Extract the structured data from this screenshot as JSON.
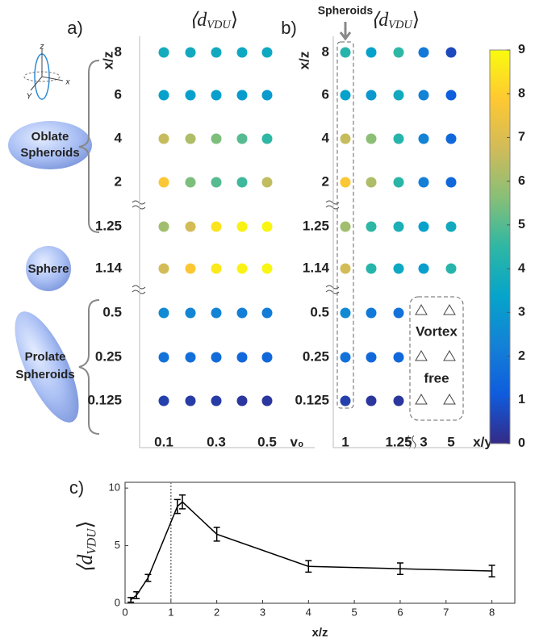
{
  "chart_data": [
    {
      "type": "heatmap",
      "panel": "a)",
      "title": "⟨d",
      "title_sub": "VDU",
      "title_close": "⟩",
      "xlabel": "v₀",
      "ylabel": "x/z",
      "columns": [
        "0.1",
        null,
        "0.3",
        null,
        "0.5"
      ],
      "rows": [
        "8",
        "6",
        "4",
        "2",
        "1.25",
        "1.14",
        "0.5",
        "0.25",
        "0.125"
      ],
      "values": [
        [
          3.8,
          3.7,
          3.7,
          3.6,
          3.6
        ],
        [
          3.3,
          3.2,
          3.2,
          3.1,
          3.1
        ],
        [
          6.6,
          6.2,
          5.5,
          5.0,
          4.5
        ],
        [
          7.8,
          5.5,
          5.0,
          4.7,
          6.5
        ],
        [
          6.0,
          6.8,
          8.5,
          8.8,
          8.9
        ],
        [
          6.8,
          7.8,
          8.6,
          8.8,
          8.9
        ],
        [
          2.5,
          2.4,
          2.3,
          2.2,
          2.1
        ],
        [
          1.8,
          1.7,
          1.6,
          1.5,
          1.5
        ],
        [
          0.5,
          0.4,
          0.4,
          0.3,
          0.3
        ]
      ],
      "shapes": {
        "oblate": [
          "Oblate",
          "Spheroids"
        ],
        "sphere": "Sphere",
        "prolate": [
          "Prolate",
          "Spheroids"
        ],
        "axes": [
          "z",
          "x",
          "Y"
        ]
      }
    },
    {
      "type": "heatmap",
      "panel": "b)",
      "title": "⟨d",
      "title_sub": "VDU",
      "title_close": "⟩",
      "xlabel": "x/y",
      "ylabel": "x/z",
      "highlight": "Spheroids",
      "empty_note": [
        "Vortex",
        "free"
      ],
      "columns": [
        "1",
        null,
        "1.25",
        "3",
        "5"
      ],
      "rows": [
        "8",
        "6",
        "4",
        "2",
        "1.25",
        "1.14",
        "0.5",
        "0.25",
        "0.125"
      ],
      "values": [
        [
          4.3,
          3.3,
          4.5,
          2.0,
          0.7
        ],
        [
          3.3,
          3.0,
          3.7,
          2.3,
          1.2
        ],
        [
          6.6,
          5.7,
          4.3,
          2.3,
          1.5
        ],
        [
          7.8,
          6.2,
          4.4,
          2.2,
          1.5
        ],
        [
          6.0,
          4.5,
          4.0,
          3.3,
          3.7
        ],
        [
          6.8,
          4.3,
          3.6,
          3.2,
          4.3
        ],
        [
          2.5,
          2.0,
          1.8,
          null,
          null
        ],
        [
          1.8,
          1.5,
          1.5,
          null,
          null
        ],
        [
          0.5,
          0.3,
          0.3,
          null,
          null
        ]
      ],
      "colorbar": {
        "colormap": [
          "#352a87",
          "#0f5cdd",
          "#1481d6",
          "#06a4ca",
          "#2eb7a4",
          "#87bf77",
          "#d1bb59",
          "#fec832",
          "#f9fb0e"
        ],
        "clim": [
          0,
          9
        ],
        "ticks": [
          0,
          1,
          2,
          3,
          4,
          5,
          6,
          7,
          8,
          9
        ]
      }
    },
    {
      "type": "line",
      "panel": "c)",
      "ylabel": "⟨d",
      "ylabel_sub": "VDU",
      "ylabel_close": "⟩",
      "xlabel": "x/z",
      "x": [
        0.125,
        0.25,
        0.5,
        1.14,
        1.25,
        2,
        4,
        6,
        8
      ],
      "values": [
        0.3,
        0.7,
        2.2,
        8.4,
        8.8,
        6.0,
        3.2,
        3.0,
        2.8
      ],
      "errors": [
        0.2,
        0.3,
        0.3,
        0.6,
        0.6,
        0.6,
        0.5,
        0.5,
        0.5
      ],
      "color": "#000000",
      "vline": 1,
      "xlim": [
        0,
        8.5
      ],
      "ylim": [
        0,
        10.5
      ],
      "xticks": [
        0,
        1,
        2,
        3,
        4,
        5,
        6,
        7,
        8
      ],
      "yticks": [
        0,
        5,
        10
      ]
    }
  ]
}
